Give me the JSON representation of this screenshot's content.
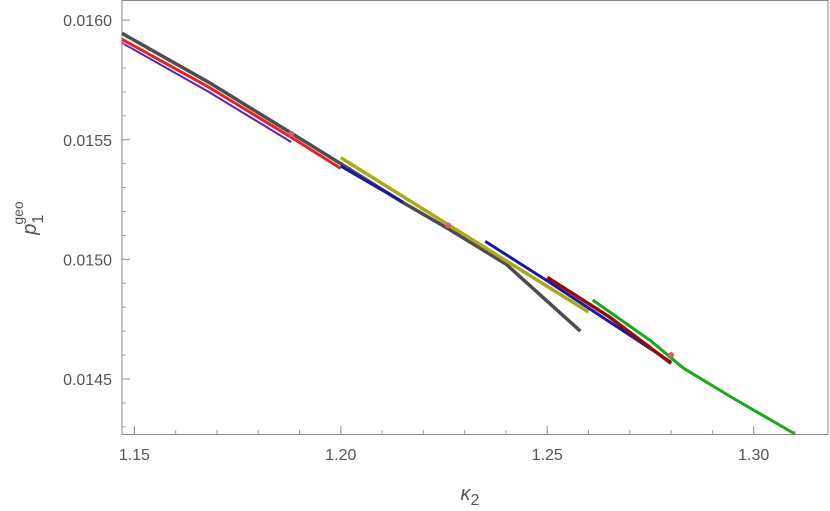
{
  "chart_data": {
    "type": "line",
    "title": "",
    "xlabel": {
      "base": "κ",
      "sub": "2"
    },
    "ylabel": {
      "base": "p",
      "sub": "1",
      "sup": "geo"
    },
    "xlim": [
      1.147,
      1.318
    ],
    "ylim": [
      0.01427,
      0.01608
    ],
    "x_ticks": [
      1.15,
      1.2,
      1.25,
      1.3
    ],
    "x_tick_labels": [
      "1.15",
      "1.20",
      "1.25",
      "1.30"
    ],
    "y_ticks": [
      0.0145,
      0.015,
      0.0155,
      0.016
    ],
    "y_tick_labels": [
      "0.0145",
      "0.0150",
      "0.0155",
      "0.0160"
    ],
    "grid": false,
    "series": [
      {
        "color": "#4d4d4d",
        "width": 3.5,
        "x": [
          1.147,
          1.168,
          1.188,
          1.2,
          1.215,
          1.226,
          1.24,
          1.258
        ],
        "y": [
          0.015945,
          0.01574,
          0.015528,
          0.0154,
          0.015238,
          0.015128,
          0.01498,
          0.0147
        ]
      },
      {
        "color": "#e82020",
        "width": 3,
        "x": [
          1.147,
          1.168,
          1.188,
          1.2
        ],
        "y": [
          0.01592,
          0.01572,
          0.01551,
          0.01538
        ]
      },
      {
        "color": "#6a1fb0",
        "width": 2,
        "x": [
          1.147,
          1.168,
          1.188
        ],
        "y": [
          0.015905,
          0.0157,
          0.01549
        ]
      },
      {
        "color": "#1818a8",
        "width": 3,
        "x": [
          1.2,
          1.215
        ],
        "y": [
          0.01539,
          0.01524
        ]
      },
      {
        "color": "#aaaa18",
        "width": 3.5,
        "x": [
          1.2,
          1.226,
          1.26
        ],
        "y": [
          0.015425,
          0.015145,
          0.01478
        ]
      },
      {
        "color": "#1818a8",
        "width": 3,
        "x": [
          1.235,
          1.25,
          1.265,
          1.28
        ],
        "y": [
          0.015075,
          0.01491,
          0.01474,
          0.01457
        ]
      },
      {
        "color": "#960a0a",
        "width": 3.5,
        "x": [
          1.25,
          1.265,
          1.28
        ],
        "y": [
          0.014925,
          0.01476,
          0.014565
        ]
      },
      {
        "color": "#18a818",
        "width": 3,
        "x": [
          1.261,
          1.275,
          1.283,
          1.295,
          1.31
        ],
        "y": [
          0.01483,
          0.01466,
          0.014545,
          0.01442,
          0.01427
        ]
      }
    ],
    "markers": {
      "color": "#d86060",
      "x": [
        1.188,
        1.226,
        1.28
      ],
      "y": [
        0.015525,
        0.015142,
        0.0146
      ]
    }
  }
}
